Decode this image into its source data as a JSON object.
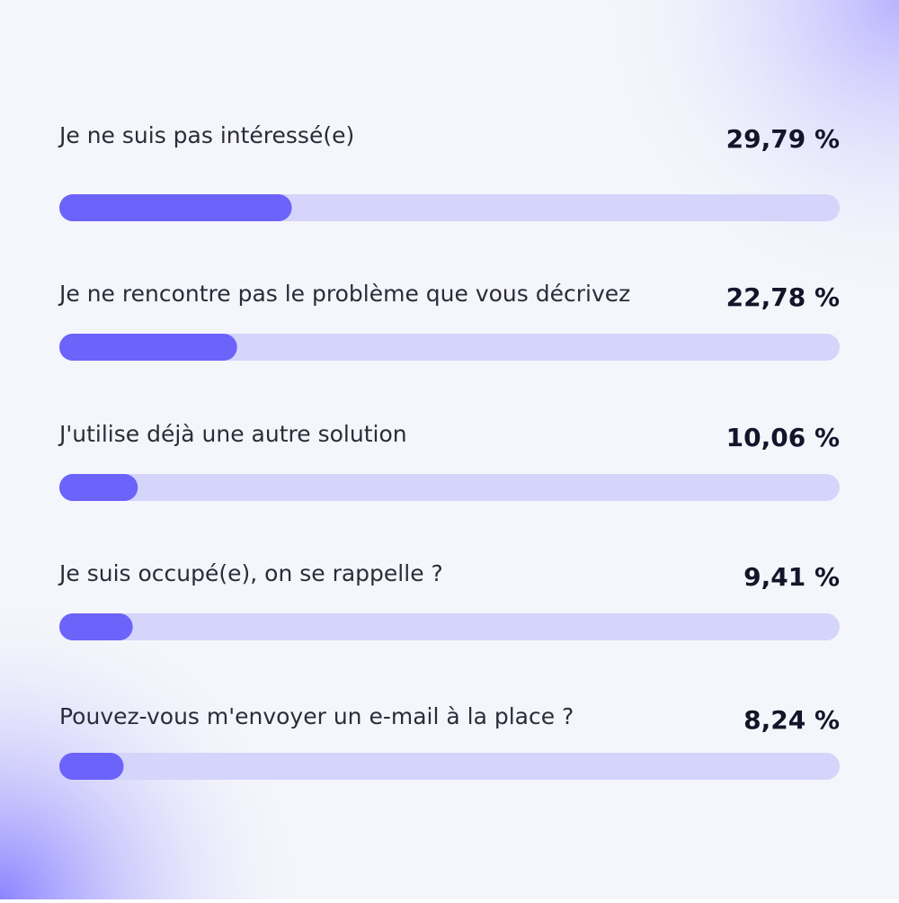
{
  "chart_data": {
    "type": "bar",
    "categories": [
      "Je ne suis pas intéressé(e)",
      "Je ne rencontre pas le problème que vous décrivez",
      "J'utilise déjà une autre solution",
      "Je suis occupé(e), on se rappelle ?",
      "Pouvez-vous m'envoyer un e-mail à la place ?"
    ],
    "values": [
      29.79,
      22.78,
      10.06,
      9.41,
      8.24
    ],
    "value_labels": [
      "29,79 %",
      "22,78 %",
      "10,06 %",
      "9,41 %",
      "8,24 %"
    ],
    "xlim": [
      0,
      100
    ],
    "color": "#6c63fb",
    "track_color": "#d5d4fb"
  }
}
